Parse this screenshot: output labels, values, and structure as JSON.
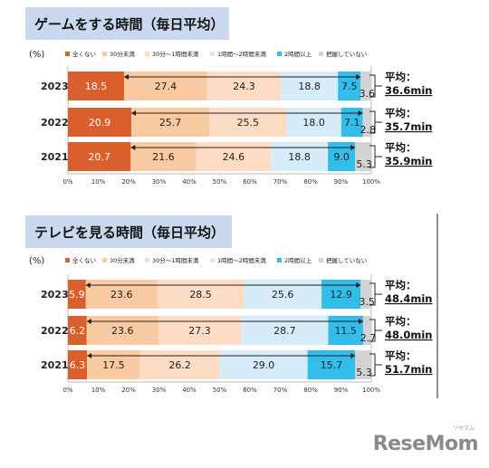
{
  "chart_data": [
    {
      "type": "bar",
      "stacked": true,
      "orientation": "horizontal",
      "title": "ゲームをする時間（毎日平均）",
      "unit_label": "(%)",
      "categories": [
        "2023",
        "2022",
        "2021"
      ],
      "series": [
        {
          "name": "全くない",
          "color": "#d9602c",
          "values": [
            18.5,
            20.9,
            20.7
          ]
        },
        {
          "name": "30分未満",
          "color": "#f9c9a2",
          "values": [
            27.4,
            25.7,
            21.6
          ]
        },
        {
          "name": "30分～1時間未満",
          "color": "#fddcc3",
          "values": [
            24.3,
            25.5,
            24.6
          ]
        },
        {
          "name": "1時間～2時間未満",
          "color": "#d6ecf8",
          "values": [
            18.8,
            18.0,
            18.8
          ]
        },
        {
          "name": "2時間以上",
          "color": "#33bdea",
          "values": [
            7.5,
            7.1,
            9.0
          ]
        },
        {
          "name": "把握していない",
          "color": "#d3d3d3",
          "values": [
            3.6,
            2.8,
            5.3
          ]
        }
      ],
      "averages": [
        {
          "label": "平均：",
          "value": "36.6min"
        },
        {
          "label": "平均：",
          "value": "35.7min"
        },
        {
          "label": "平均：",
          "value": "35.9min"
        }
      ],
      "xticks": [
        "0%",
        "10%",
        "20%",
        "30%",
        "40%",
        "50%",
        "60%",
        "70%",
        "80%",
        "90%",
        "100%"
      ],
      "xlim": [
        0,
        100
      ]
    },
    {
      "type": "bar",
      "stacked": true,
      "orientation": "horizontal",
      "title": "テレビを見る時間（毎日平均）",
      "unit_label": "(%)",
      "categories": [
        "2023",
        "2022",
        "2021"
      ],
      "series": [
        {
          "name": "全くない",
          "color": "#d9602c",
          "values": [
            5.9,
            6.2,
            6.3
          ]
        },
        {
          "name": "30分未満",
          "color": "#f9c9a2",
          "values": [
            23.6,
            23.6,
            17.5
          ]
        },
        {
          "name": "30分～1時間未満",
          "color": "#fddcc3",
          "values": [
            28.5,
            27.3,
            26.2
          ]
        },
        {
          "name": "1時間～2時間未満",
          "color": "#d6ecf8",
          "values": [
            25.6,
            28.7,
            29.0
          ]
        },
        {
          "name": "2時間以上",
          "color": "#33bdea",
          "values": [
            12.9,
            11.5,
            15.7
          ]
        },
        {
          "name": "把握していない",
          "color": "#d3d3d3",
          "values": [
            3.5,
            2.7,
            5.3
          ]
        }
      ],
      "averages": [
        {
          "label": "平均：",
          "value": "48.4min"
        },
        {
          "label": "平均：",
          "value": "48.0min"
        },
        {
          "label": "平均：",
          "value": "51.7min"
        }
      ],
      "xticks": [
        "0%",
        "10%",
        "20%",
        "30%",
        "40%",
        "50%",
        "60%",
        "70%",
        "80%",
        "90%",
        "100%"
      ],
      "xlim": [
        0,
        100
      ]
    }
  ],
  "logo": {
    "text": "ReseMom",
    "ruby": "リセマム"
  }
}
